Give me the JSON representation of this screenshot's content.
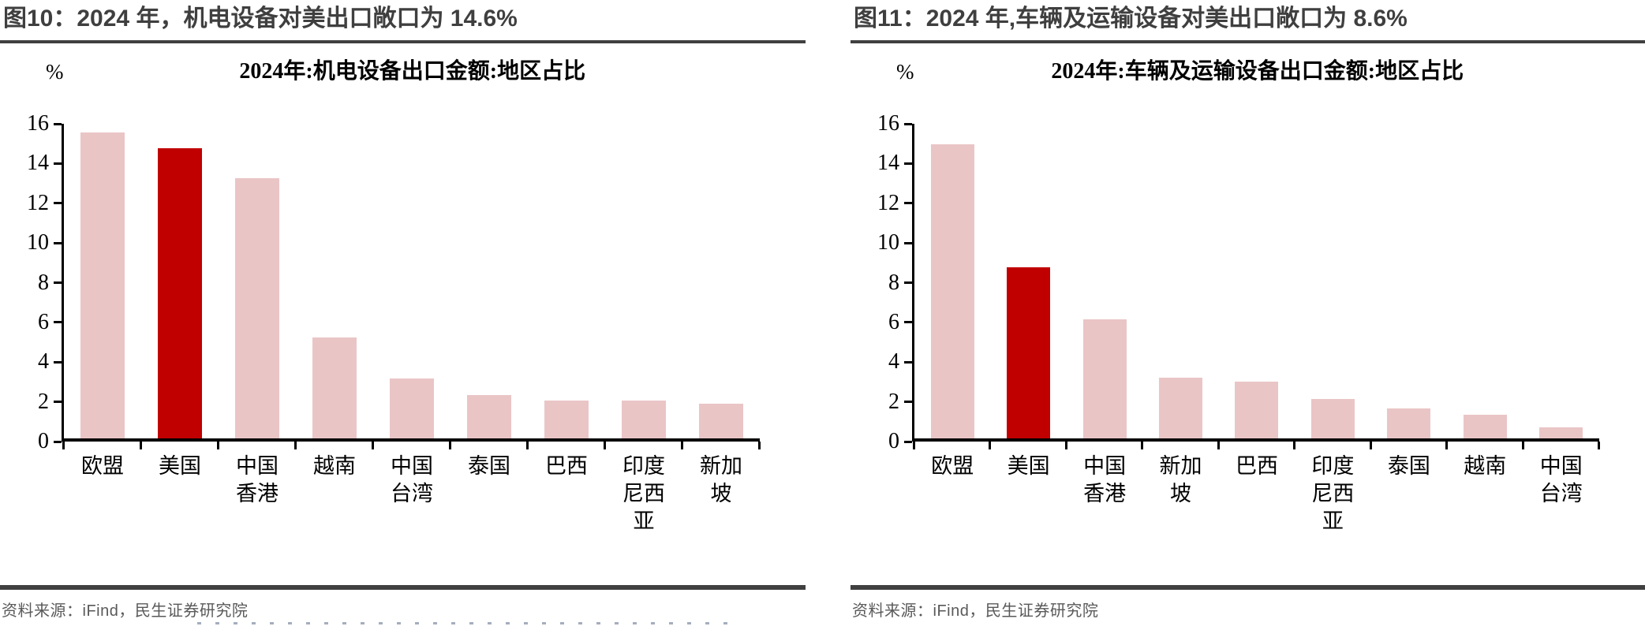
{
  "colors": {
    "bar_pink": "#EAC5C6",
    "bar_red": "#C00000",
    "rule_dark": "#404040",
    "source_text": "#595959",
    "axis": "#000000"
  },
  "figures": [
    {
      "title": "图10：2024 年，机电设备对美出口敞口为 14.6%",
      "source": "资料来源：iFind，民生证券研究院"
    },
    {
      "title": "图11：2024 年,车辆及运输设备对美出口敞口为 8.6%",
      "source": "资料来源：iFind，民生证券研究院"
    }
  ],
  "chart_data": [
    {
      "type": "bar",
      "title": "2024年:机电设备出口金额:地区占比",
      "unit_label": "%",
      "categories": [
        "欧盟",
        "美国",
        "中国香港",
        "越南",
        "中国台湾",
        "泰国",
        "巴西",
        "印度尼西亚",
        "新加坡"
      ],
      "category_lines": [
        [
          "欧盟"
        ],
        [
          "美国"
        ],
        [
          "中国",
          "香港"
        ],
        [
          "越南"
        ],
        [
          "中国",
          "台湾"
        ],
        [
          "泰国"
        ],
        [
          "巴西"
        ],
        [
          "印度",
          "尼西",
          "亚"
        ],
        [
          "新加",
          "坡"
        ]
      ],
      "values": [
        15.4,
        14.6,
        13.1,
        5.1,
        3.0,
        2.2,
        1.9,
        1.9,
        1.75
      ],
      "highlight_index": 1,
      "highlight_category": "美国",
      "ylim": [
        0,
        16
      ],
      "ytick_step": 2,
      "grid": false,
      "legend": false
    },
    {
      "type": "bar",
      "title": "2024年:车辆及运输设备出口金额:地区占比",
      "unit_label": "%",
      "categories": [
        "欧盟",
        "美国",
        "中国香港",
        "新加坡",
        "巴西",
        "印度尼西亚",
        "泰国",
        "越南",
        "中国台湾"
      ],
      "category_lines": [
        [
          "欧盟"
        ],
        [
          "美国"
        ],
        [
          "中国",
          "香港"
        ],
        [
          "新加",
          "坡"
        ],
        [
          "巴西"
        ],
        [
          "印度",
          "尼西",
          "亚"
        ],
        [
          "泰国"
        ],
        [
          "越南"
        ],
        [
          "中国",
          "台湾"
        ]
      ],
      "values": [
        14.8,
        8.6,
        6.0,
        3.05,
        2.85,
        2.0,
        1.5,
        1.2,
        0.55
      ],
      "highlight_index": 1,
      "highlight_category": "美国",
      "ylim": [
        0,
        16
      ],
      "ytick_step": 2,
      "grid": false,
      "legend": false
    }
  ]
}
